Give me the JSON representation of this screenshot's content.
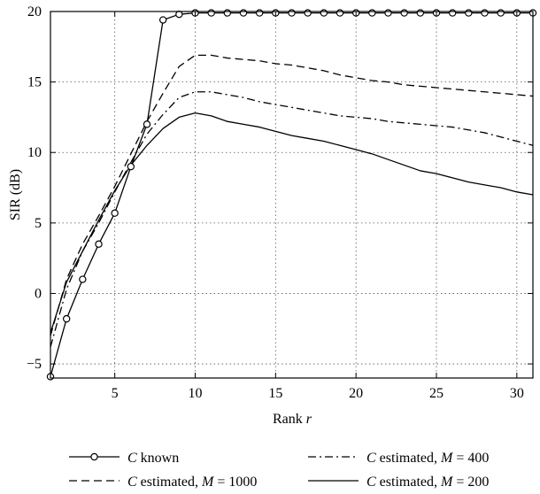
{
  "chart_data": {
    "type": "line",
    "xlabel": "Rank",
    "xlabel_var": "r",
    "ylabel": "SIR (dB)",
    "xlim": [
      1,
      31
    ],
    "ylim": [
      -6,
      20
    ],
    "xticks": [
      5,
      10,
      15,
      20,
      25,
      30
    ],
    "yticks": [
      -5,
      0,
      5,
      10,
      15,
      20
    ],
    "grid": true,
    "legend_position": "bottom",
    "x": [
      1,
      2,
      3,
      4,
      5,
      6,
      7,
      8,
      9,
      10,
      11,
      12,
      13,
      14,
      15,
      16,
      17,
      18,
      19,
      20,
      21,
      22,
      23,
      24,
      25,
      26,
      27,
      28,
      29,
      30,
      31
    ],
    "series": [
      {
        "name": "C known",
        "legend_parts": [
          "C",
          " known"
        ],
        "style": "solid-circle",
        "values": [
          -5.9,
          -1.8,
          1.0,
          3.5,
          5.7,
          9.0,
          12.0,
          19.4,
          19.8,
          19.9,
          19.9,
          19.9,
          19.9,
          19.9,
          19.9,
          19.9,
          19.9,
          19.9,
          19.9,
          19.9,
          19.9,
          19.9,
          19.9,
          19.9,
          19.9,
          19.9,
          19.9,
          19.9,
          19.9,
          19.9,
          19.9
        ]
      },
      {
        "name": "C estimated, M = 1000",
        "legend_parts": [
          "C",
          " estimated, ",
          "M",
          " = 1000"
        ],
        "style": "dashed",
        "values": [
          -3.0,
          1.0,
          3.5,
          5.5,
          7.6,
          9.9,
          12.2,
          14.2,
          16.1,
          16.9,
          16.9,
          16.7,
          16.6,
          16.5,
          16.3,
          16.2,
          16.0,
          15.8,
          15.5,
          15.3,
          15.1,
          15.0,
          14.8,
          14.7,
          14.6,
          14.5,
          14.4,
          14.3,
          14.2,
          14.1,
          14.0
        ]
      },
      {
        "name": "C estimated, M = 400",
        "legend_parts": [
          "C",
          " estimated, ",
          "M",
          " = 400"
        ],
        "style": "dashdot",
        "values": [
          -3.8,
          0.3,
          3.0,
          5.0,
          7.2,
          9.3,
          11.3,
          12.7,
          13.9,
          14.3,
          14.3,
          14.1,
          13.9,
          13.6,
          13.4,
          13.2,
          13.0,
          12.8,
          12.6,
          12.5,
          12.4,
          12.2,
          12.1,
          12.0,
          11.9,
          11.8,
          11.6,
          11.4,
          11.1,
          10.8,
          10.5
        ]
      },
      {
        "name": "C estimated, M = 200",
        "legend_parts": [
          "C",
          " estimated, ",
          "M",
          " = 200"
        ],
        "style": "solid",
        "values": [
          -2.8,
          0.8,
          3.0,
          5.2,
          7.3,
          9.1,
          10.5,
          11.7,
          12.5,
          12.8,
          12.6,
          12.2,
          12.0,
          11.8,
          11.5,
          11.2,
          11.0,
          10.8,
          10.5,
          10.2,
          9.9,
          9.5,
          9.1,
          8.7,
          8.5,
          8.2,
          7.9,
          7.7,
          7.5,
          7.2,
          7.0
        ]
      }
    ]
  }
}
